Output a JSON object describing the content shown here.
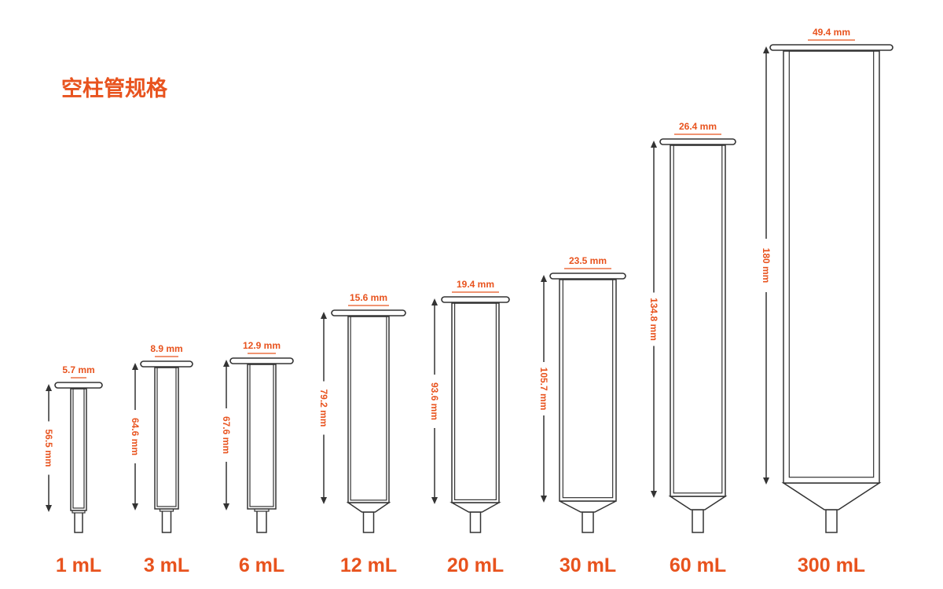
{
  "title": "空柱管规格",
  "columns": [
    {
      "volume": "1 mL",
      "diameter": "5.7 mm",
      "height": "56.5 mm"
    },
    {
      "volume": "3 mL",
      "diameter": "8.9 mm",
      "height": "64.6 mm"
    },
    {
      "volume": "6 mL",
      "diameter": "12.9 mm",
      "height": "67.6 mm"
    },
    {
      "volume": "12 mL",
      "diameter": "15.6 mm",
      "height": "79.2 mm"
    },
    {
      "volume": "20 mL",
      "diameter": "19.4 mm",
      "height": "93.6 mm"
    },
    {
      "volume": "30 mL",
      "diameter": "23.5 mm",
      "height": "105.7 mm"
    },
    {
      "volume": "60 mL",
      "diameter": "26.4 mm",
      "height": "134.8 mm"
    },
    {
      "volume": "300 mL",
      "diameter": "49.4 mm",
      "height": "180 mm"
    }
  ]
}
